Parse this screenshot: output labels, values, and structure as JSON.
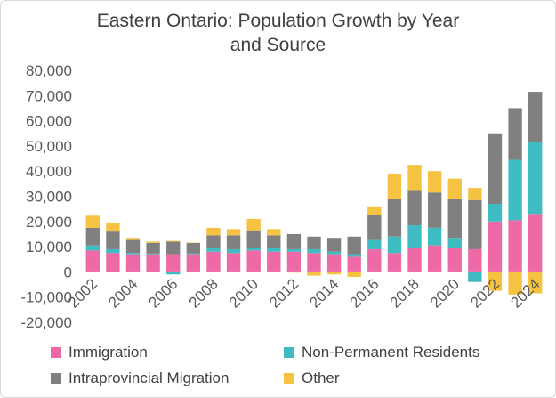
{
  "chart_data": {
    "type": "bar",
    "stacked": true,
    "title_lines": [
      "Eastern Ontario: Population Growth by Year",
      "and Source"
    ],
    "categories": [
      "2002",
      "2003",
      "2004",
      "2005",
      "2006",
      "2007",
      "2008",
      "2009",
      "2010",
      "2011",
      "2012",
      "2013",
      "2014",
      "2015",
      "2016",
      "2017",
      "2018",
      "2019",
      "2020",
      "2021",
      "2022",
      "2023",
      "2024"
    ],
    "x_tick_labels": [
      "2002",
      "",
      "2004",
      "",
      "2006",
      "",
      "2008",
      "",
      "2010",
      "",
      "2012",
      "",
      "2014",
      "",
      "2016",
      "",
      "2018",
      "",
      "2020",
      "",
      "2022",
      "",
      "2024"
    ],
    "y_ticks": [
      "80,000",
      "70,000",
      "60,000",
      "50,000",
      "40,000",
      "30,000",
      "20,000",
      "10,000",
      "0",
      "-10,000",
      "-20,000"
    ],
    "ylim": [
      -20000,
      80000
    ],
    "grid": false,
    "legend_position": "bottom",
    "series": [
      {
        "name": "Immigration",
        "color": "#ee6aa7",
        "values": [
          8500,
          7500,
          7000,
          7000,
          7000,
          7000,
          8000,
          7500,
          8500,
          8000,
          8000,
          7500,
          7000,
          6000,
          9000,
          7500,
          9500,
          10500,
          9500,
          9000,
          20000,
          20500,
          23000
        ]
      },
      {
        "name": "Non-Permanent Residents",
        "color": "#3fbcc1",
        "values": [
          2000,
          1500,
          500,
          300,
          -1000,
          300,
          1500,
          1500,
          1000,
          1500,
          1000,
          1500,
          1000,
          1000,
          4000,
          6500,
          9000,
          7000,
          4000,
          -4000,
          7000,
          24000,
          28500
        ]
      },
      {
        "name": "Intraprovincial Migration",
        "color": "#808080",
        "values": [
          7000,
          7000,
          5500,
          4200,
          5000,
          4200,
          5000,
          5500,
          7000,
          5000,
          6000,
          5000,
          5500,
          7000,
          9500,
          15000,
          14000,
          14000,
          15500,
          19500,
          28000,
          20500,
          20000
        ]
      },
      {
        "name": "Other",
        "color": "#f5c242",
        "values": [
          4800,
          3500,
          500,
          500,
          300,
          100,
          3000,
          2500,
          4500,
          2500,
          -300,
          -1500,
          -1000,
          -2000,
          3500,
          10000,
          10000,
          8500,
          8000,
          4800,
          -7500,
          -9000,
          -8500
        ]
      }
    ]
  }
}
